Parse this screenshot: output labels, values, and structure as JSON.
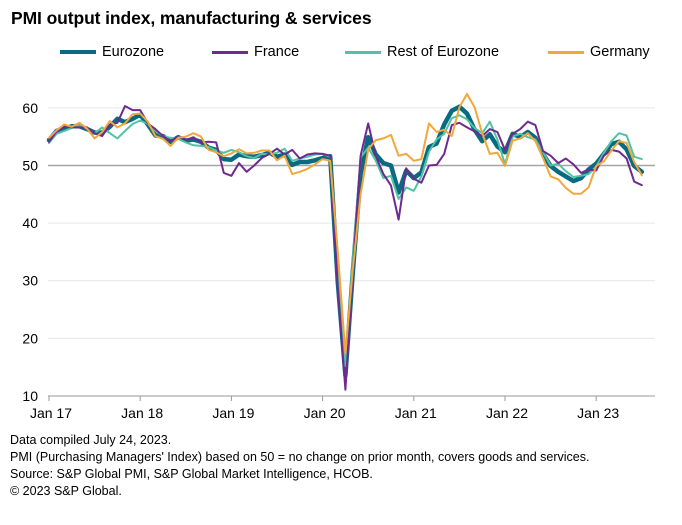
{
  "title": "PMI output index, manufacturing & services",
  "footer": {
    "compiled": "Data compiled July 24, 2023.",
    "definition": "PMI (Purchasing Managers' Index) based on 50 = no change on prior month, covers goods and services.",
    "source": "Source: S&P Global PMI, S&P Global Market Intelligence, HCOB.",
    "copyright": "© 2023 S&P Global."
  },
  "chart_data": {
    "type": "line",
    "title": "PMI output index, manufacturing & services",
    "xlabel": "",
    "ylabel": "",
    "x_start": "Jan 2017",
    "x_end": "Jul 2023",
    "xticks": [
      "Jan 17",
      "Jan 18",
      "Jan 19",
      "Jan 20",
      "Jan 21",
      "Jan 22",
      "Jan 23"
    ],
    "ylim": [
      10,
      65
    ],
    "yticks": [
      10,
      20,
      30,
      40,
      50,
      60
    ],
    "reference_line": 50,
    "grid": true,
    "legend_position": "top",
    "series": [
      {
        "name": "Eurozone",
        "color": "#0a6a82",
        "width": 4.5,
        "values": [
          54.4,
          56.0,
          56.4,
          56.8,
          56.8,
          56.3,
          55.7,
          55.7,
          56.7,
          58.1,
          57.5,
          58.1,
          58.8,
          57.1,
          55.2,
          55.1,
          54.1,
          54.9,
          54.3,
          54.5,
          54.1,
          53.1,
          52.7,
          51.1,
          51.0,
          51.9,
          51.6,
          51.5,
          51.8,
          52.2,
          51.5,
          51.9,
          50.1,
          50.6,
          50.6,
          50.9,
          51.3,
          51.6,
          29.7,
          13.6,
          31.9,
          48.5,
          54.9,
          51.9,
          50.4,
          50.0,
          45.3,
          49.1,
          47.8,
          48.8,
          53.2,
          53.8,
          57.1,
          59.5,
          60.2,
          59.0,
          56.2,
          54.2,
          55.4,
          53.3,
          52.3,
          55.5,
          54.9,
          55.8,
          54.8,
          52.0,
          49.9,
          48.9,
          48.1,
          47.3,
          47.8,
          49.3,
          50.3,
          52.0,
          53.7,
          54.1,
          52.8,
          49.9,
          48.9
        ]
      },
      {
        "name": "France",
        "color": "#6e2a8f",
        "width": 2,
        "values": [
          54.1,
          55.9,
          56.8,
          56.6,
          56.6,
          56.6,
          55.6,
          55.1,
          57.1,
          57.4,
          60.3,
          59.6,
          59.6,
          57.3,
          56.3,
          55.1,
          54.2,
          55.0,
          54.4,
          54.9,
          54.0,
          54.1,
          54.0,
          48.7,
          48.2,
          50.4,
          48.9,
          50.0,
          51.3,
          52.0,
          52.9,
          51.9,
          52.7,
          51.2,
          51.9,
          52.1,
          52.0,
          51.7,
          28.9,
          11.1,
          32.1,
          51.7,
          57.3,
          51.6,
          48.5,
          46.5,
          40.6,
          49.5,
          47.7,
          47.0,
          50.0,
          50.1,
          52.0,
          57.0,
          57.4,
          56.6,
          55.9,
          55.1,
          56.3,
          55.8,
          52.7,
          55.5,
          56.3,
          57.6,
          57.0,
          52.5,
          51.7,
          50.4,
          51.2,
          50.2,
          48.7,
          49.3,
          49.1,
          51.7,
          52.7,
          52.4,
          51.2,
          47.2,
          46.6
        ]
      },
      {
        "name": "Rest of Eurozone",
        "color": "#4fc3a5",
        "width": 2,
        "values": [
          53.9,
          55.5,
          56.0,
          56.5,
          57.0,
          56.4,
          55.6,
          56.6,
          55.6,
          54.7,
          56.0,
          57.2,
          57.8,
          57.2,
          56.0,
          55.1,
          54.8,
          54.6,
          54.0,
          53.5,
          53.4,
          53.2,
          52.6,
          52.2,
          52.7,
          52.3,
          51.6,
          51.3,
          52.0,
          51.9,
          52.2,
          52.9,
          50.8,
          51.2,
          51.5,
          51.9,
          52.0,
          51.5,
          31.2,
          15.2,
          34.1,
          51.4,
          53.1,
          50.8,
          47.8,
          48.2,
          44.2,
          46.2,
          45.6,
          48.1,
          52.4,
          54.5,
          55.5,
          58.2,
          58.7,
          58.0,
          56.5,
          55.6,
          57.6,
          54.5,
          50.2,
          55.0,
          55.5,
          54.9,
          54.5,
          52.3,
          50.0,
          50.3,
          49.0,
          48.0,
          48.2,
          48.5,
          49.8,
          52.2,
          54.2,
          55.6,
          55.2,
          51.5,
          51.1
        ]
      },
      {
        "name": "Germany",
        "color": "#f2a73b",
        "width": 2,
        "values": [
          54.8,
          56.1,
          57.1,
          56.7,
          57.4,
          56.4,
          54.7,
          55.8,
          57.7,
          56.6,
          57.3,
          58.9,
          59.0,
          57.6,
          55.1,
          54.6,
          53.4,
          54.8,
          55.0,
          55.6,
          55.0,
          52.7,
          52.3,
          51.6,
          52.1,
          52.8,
          52.1,
          52.2,
          52.6,
          52.6,
          50.9,
          51.7,
          48.5,
          48.9,
          49.4,
          50.2,
          51.1,
          50.8,
          35.0,
          17.4,
          32.3,
          45.0,
          52.8,
          54.4,
          54.7,
          55.3,
          51.7,
          52.0,
          50.8,
          51.1,
          57.3,
          55.8,
          56.2,
          55.1,
          60.1,
          62.4,
          60.1,
          55.6,
          52.0,
          52.2,
          49.9,
          54.3,
          54.7,
          55.6,
          54.2,
          51.3,
          48.1,
          47.6,
          46.1,
          45.1,
          45.1,
          46.2,
          49.9,
          50.7,
          52.6,
          54.2,
          53.9,
          50.6,
          48.3
        ]
      }
    ]
  }
}
